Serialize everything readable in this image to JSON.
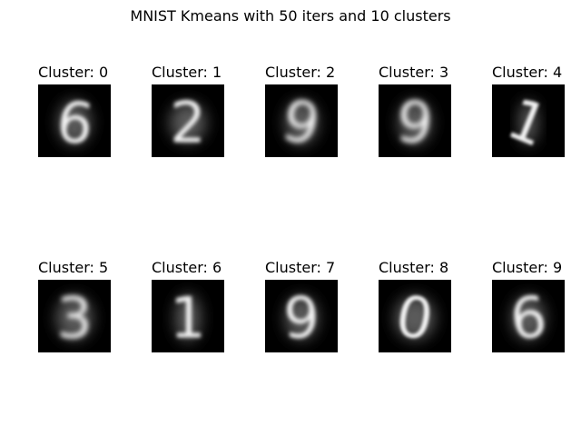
{
  "title": "MNIST Kmeans with 50 iters and 10 clusters",
  "clusters": [
    {
      "label": "Cluster: 0",
      "digit": "6"
    },
    {
      "label": "Cluster: 1",
      "digit": "2"
    },
    {
      "label": "Cluster: 2",
      "digit": "9"
    },
    {
      "label": "Cluster: 3",
      "digit": "9"
    },
    {
      "label": "Cluster: 4",
      "digit": "1"
    },
    {
      "label": "Cluster: 5",
      "digit": "3"
    },
    {
      "label": "Cluster: 6",
      "digit": "1"
    },
    {
      "label": "Cluster: 7",
      "digit": "9"
    },
    {
      "label": "Cluster: 8",
      "digit": "0"
    },
    {
      "label": "Cluster: 9",
      "digit": "6"
    }
  ]
}
